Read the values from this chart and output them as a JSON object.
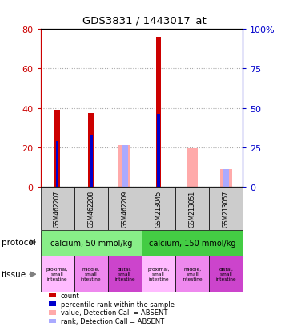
{
  "title": "GDS3831 / 1443017_at",
  "samples": [
    "GSM462207",
    "GSM462208",
    "GSM462209",
    "GSM213045",
    "GSM213051",
    "GSM213057"
  ],
  "red_bars": [
    39,
    37.5,
    0,
    76,
    0,
    0
  ],
  "blue_bars": [
    23,
    26,
    0,
    37,
    0,
    0
  ],
  "pink_bars": [
    0,
    0,
    21,
    0,
    19.5,
    9
  ],
  "lavender_bars": [
    0,
    0,
    21,
    0,
    0,
    9
  ],
  "ylim_left": [
    0,
    80
  ],
  "ylim_right": [
    0,
    100
  ],
  "yticks_left": [
    0,
    20,
    40,
    60,
    80
  ],
  "yticks_right": [
    0,
    25,
    50,
    75,
    100
  ],
  "ytick_labels_left": [
    "0",
    "20",
    "40",
    "60",
    "80"
  ],
  "ytick_labels_right": [
    "0",
    "25",
    "50",
    "75",
    "100%"
  ],
  "protocol_groups": [
    {
      "label": "calcium, 50 mmol/kg",
      "start": 0,
      "end": 3,
      "color": "#88ee88"
    },
    {
      "label": "calcium, 150 mmol/kg",
      "start": 3,
      "end": 6,
      "color": "#44cc44"
    }
  ],
  "tissue_colors": [
    "#ffbbff",
    "#ee88ee",
    "#cc44cc",
    "#ffbbff",
    "#ee88ee",
    "#cc44cc"
  ],
  "tissue_labels": [
    "proximal,\nsmall\nintestine",
    "middle,\nsmall\nintestine",
    "distal,\nsmall\nintestine",
    "proximal,\nsmall\nintestine",
    "middle,\nsmall\nintestine",
    "distal,\nsmall\nintestine"
  ],
  "bar_color_red": "#cc0000",
  "bar_color_blue": "#0000cc",
  "bar_color_pink": "#ffaaaa",
  "bar_color_lavender": "#aaaaff",
  "legend_items": [
    {
      "color": "#cc0000",
      "label": "count"
    },
    {
      "color": "#0000cc",
      "label": "percentile rank within the sample"
    },
    {
      "color": "#ffaaaa",
      "label": "value, Detection Call = ABSENT"
    },
    {
      "color": "#aaaaff",
      "label": "rank, Detection Call = ABSENT"
    }
  ],
  "grid_color": "#aaaaaa",
  "plot_bg": "#ffffff",
  "left_yaxis_color": "#cc0000",
  "right_yaxis_color": "#0000cc"
}
